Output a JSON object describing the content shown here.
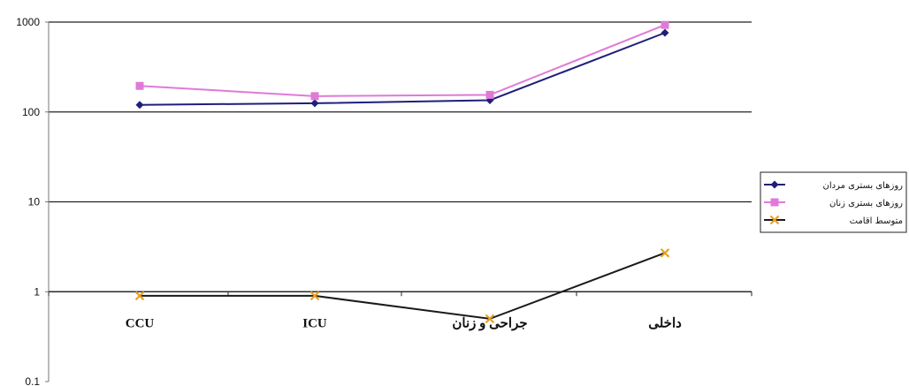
{
  "chart_data": {
    "type": "line",
    "title": "",
    "xlabel": "",
    "ylabel": "",
    "y_scale": "log",
    "ylim": [
      0.1,
      1000
    ],
    "y_ticks": [
      "0.1",
      "1",
      "10",
      "100",
      "1000"
    ],
    "y_tick_values": [
      0.1,
      1,
      10,
      100,
      1000
    ],
    "grid": "horizontal",
    "legend_position": "right",
    "categories": [
      "CCU",
      "ICU",
      "جراحی و زنان",
      "داخلی"
    ],
    "series": [
      {
        "name": "روزهای بستری مردان",
        "values": [
          120,
          125,
          135,
          760
        ],
        "color": "#1f1f7a",
        "marker": "diamond"
      },
      {
        "name": "روزهای بستری زنان",
        "values": [
          195,
          150,
          155,
          930
        ],
        "color": "#e07ad8",
        "marker": "square"
      },
      {
        "name": "متوسط اقامت",
        "values": [
          0.9,
          0.9,
          0.5,
          2.7
        ],
        "color": "#e8a020",
        "line_color": "#1a1a1a",
        "marker": "x"
      }
    ]
  }
}
